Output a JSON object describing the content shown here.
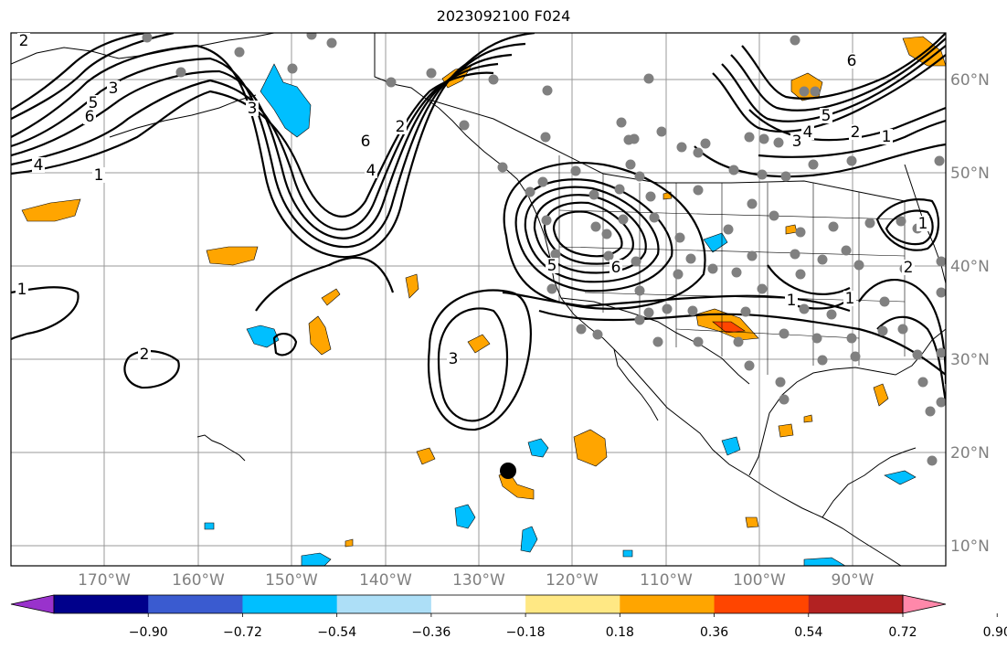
{
  "title": "2023092100 F024",
  "map": {
    "lat_labels": [
      "60°N",
      "50°N",
      "40°N",
      "30°N",
      "20°N",
      "10°N"
    ],
    "lon_labels": [
      "170°W",
      "160°W",
      "150°W",
      "140°W",
      "130°W",
      "120°W",
      "110°W",
      "100°W",
      "90°W"
    ],
    "contour_labels": [
      "2",
      "3",
      "5",
      "6",
      "4",
      "1",
      "3",
      "6",
      "2",
      "4",
      "1",
      "2",
      "3",
      "6",
      "5",
      "6",
      "5",
      "4",
      "3",
      "2",
      "1",
      "1",
      "1",
      "2",
      "1"
    ]
  },
  "colorbar": {
    "colors": [
      "#9932CC",
      "#00008B",
      "#3A5BD0",
      "#00BFFF",
      "#ADDFF7",
      "#FFFFFF",
      "#FFE884",
      "#FFA500",
      "#FF4500",
      "#B22222",
      "#FF88AA"
    ],
    "tick_labels": [
      "−0.90",
      "−0.72",
      "−0.54",
      "−0.36",
      "−0.18",
      "0.18",
      "0.36",
      "0.54",
      "0.72",
      "0.90"
    ]
  }
}
